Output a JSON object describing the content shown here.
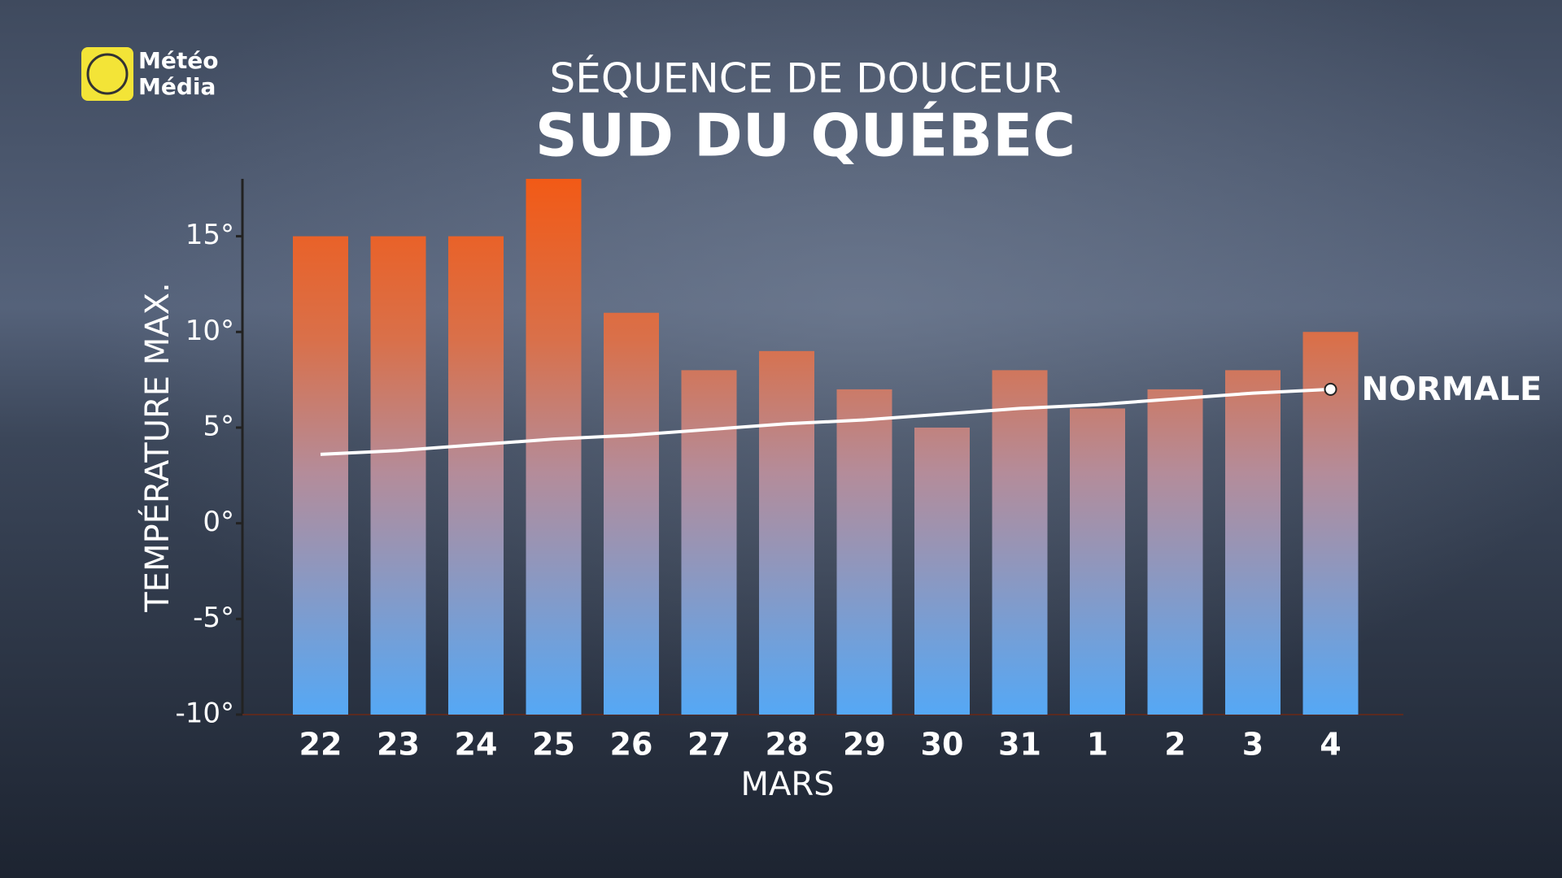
{
  "logo": [
    "Météo",
    "Média"
  ],
  "chart_data": {
    "type": "bar",
    "title": "SÉQUENCE DE DOUCEUR",
    "subtitle": "SUD DU QUÉBEC",
    "y_label": "TEMPÉRATURE MAX.",
    "x_label": "MARS",
    "categories": [
      "22",
      "23",
      "24",
      "25",
      "26",
      "27",
      "28",
      "29",
      "30",
      "31",
      "1",
      "2",
      "3",
      "4"
    ],
    "values": [
      15,
      15,
      15,
      18,
      11,
      8,
      9,
      7,
      5,
      8,
      6,
      7,
      8,
      10
    ],
    "color": "#e8602a",
    "line": {
      "name": "NORMALE",
      "color": "#ffffff",
      "values": [
        3.6,
        3.8,
        4.1,
        4.4,
        4.6,
        4.9,
        5.2,
        5.4,
        5.7,
        6.0,
        6.2,
        6.5,
        6.8,
        7.0
      ]
    },
    "ylim": [
      -10,
      18
    ],
    "yticks": [
      {
        "value": -10,
        "label": "-10°"
      },
      {
        "value": -5,
        "label": "-5°"
      },
      {
        "value": 0,
        "label": "0°"
      },
      {
        "value": 5,
        "label": "5°"
      },
      {
        "value": 10,
        "label": "10°"
      },
      {
        "value": 15,
        "label": "15°"
      }
    ]
  }
}
